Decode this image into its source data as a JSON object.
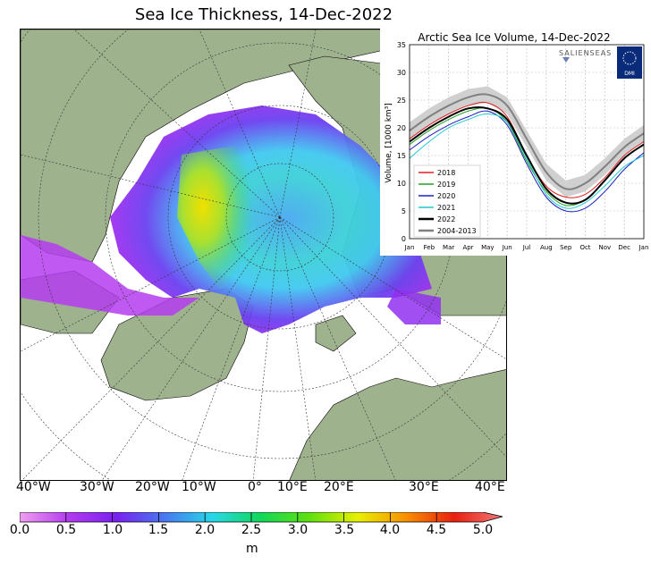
{
  "map": {
    "title": "Sea Ice Thickness, 14-Dec-2022",
    "longitude_labels": [
      "40°W",
      "30°W",
      "20°W",
      "10°W",
      "0°",
      "10°E",
      "20°E",
      "30°E",
      "40°E"
    ],
    "colorbar": {
      "ticks": [
        "0.0",
        "0.5",
        "1.0",
        "1.5",
        "2.0",
        "2.5",
        "3.0",
        "3.5",
        "4.0",
        "4.5",
        "5.0"
      ],
      "unit": "m",
      "colors": [
        "#f0a0f0",
        "#b43cf0",
        "#7a20f0",
        "#4878f0",
        "#28d8e8",
        "#10d858",
        "#60e010",
        "#e8f000",
        "#f89000",
        "#e82010",
        "#f07878"
      ]
    },
    "colors": {
      "land": "#9fb28e",
      "ocean": "#ffffff",
      "coast": "#000000"
    }
  },
  "chart_data": {
    "type": "line",
    "title": "Arctic Sea Ice Volume, 14-Dec-2022",
    "logo_text": "SALIENSEAS",
    "logo_badge": "DMI",
    "ylabel": "Volume, [1000 km³]",
    "xlabel": "",
    "ylim": [
      0,
      35
    ],
    "yticks": [
      0,
      5,
      10,
      15,
      20,
      25,
      30,
      35
    ],
    "categories": [
      "Jan",
      "Feb",
      "Mar",
      "Apr",
      "May",
      "Jun",
      "Jul",
      "Aug",
      "Sep",
      "Oct",
      "Nov",
      "Dec",
      "Jan"
    ],
    "grid": true,
    "legend_position": "bottom-left",
    "series": [
      {
        "name": "2018",
        "color": "#e02020",
        "values": [
          18,
          20.5,
          22.5,
          24,
          24.5,
          22,
          15,
          9.5,
          7.5,
          8,
          11,
          15,
          17.5
        ]
      },
      {
        "name": "2019",
        "color": "#20a020",
        "values": [
          17,
          19.5,
          21.5,
          23,
          23.5,
          21,
          14,
          8.5,
          6,
          7,
          10.5,
          14.5,
          17
        ]
      },
      {
        "name": "2020",
        "color": "#2020c0",
        "values": [
          16,
          18.5,
          20.5,
          22,
          23,
          20.5,
          13.5,
          7.5,
          5,
          5.5,
          8.5,
          12.5,
          15.5
        ]
      },
      {
        "name": "2021",
        "color": "#20c8d0",
        "values": [
          14.5,
          17.5,
          20,
          21.5,
          22.5,
          21,
          14.5,
          8,
          5.5,
          6.5,
          9.5,
          13,
          15
        ]
      },
      {
        "name": "2022",
        "color": "#000000",
        "values": [
          17.5,
          20,
          22,
          23.5,
          23.5,
          21.5,
          15,
          9,
          6.5,
          7,
          10.5,
          14.5,
          17
        ]
      },
      {
        "name": "2004-2013",
        "color": "#808080",
        "values": [
          19.5,
          22,
          24,
          25.5,
          26,
          24,
          18,
          12,
          9,
          10,
          13,
          16.5,
          19
        ]
      }
    ]
  }
}
